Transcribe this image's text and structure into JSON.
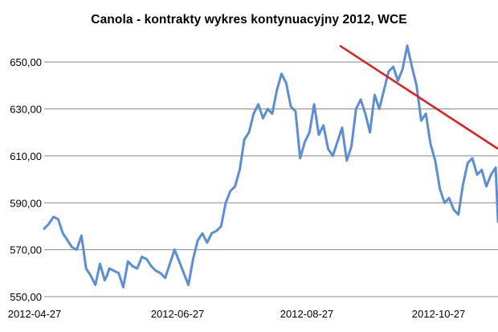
{
  "chart_data": {
    "type": "line",
    "title": "Canola - kontrakty  wykres kontynuacyjny 2012, WCE",
    "xlabel": "",
    "ylabel": "",
    "x_tick_labels": [
      "2012-04-27",
      "2012-06-27",
      "2012-08-27",
      "2012-10-27"
    ],
    "y_tick_labels": [
      "550,00",
      "570,00",
      "590,00",
      "610,00",
      "630,00",
      "650,00"
    ],
    "y_ticks": [
      550,
      570,
      590,
      610,
      630,
      650
    ],
    "ylim": [
      550,
      660
    ],
    "x_range_days": [
      0,
      195
    ],
    "grid": "horizontal",
    "series": [
      {
        "color": "#5b8ed6",
        "x": [
          0,
          2,
          4,
          6,
          8,
          10,
          12,
          14,
          16,
          18,
          20,
          22,
          24,
          26,
          27,
          28,
          30,
          32,
          34,
          36,
          38,
          40,
          42,
          44,
          46,
          48,
          50,
          52,
          54,
          56,
          58,
          60,
          62,
          64,
          66,
          68,
          70,
          72,
          74,
          76,
          78,
          80,
          82,
          84,
          86,
          88,
          90,
          92,
          94,
          96,
          98,
          100,
          102,
          104,
          106,
          108,
          110,
          112,
          114,
          116,
          118,
          120,
          122,
          124,
          126,
          128,
          130,
          132,
          134,
          136,
          138,
          140,
          142,
          144,
          146,
          148,
          150,
          152,
          154,
          156,
          158,
          160,
          162,
          164,
          166,
          168,
          170,
          172,
          174,
          176,
          178,
          180,
          182,
          184,
          186,
          188,
          190,
          192,
          194,
          195
        ],
        "y": [
          579,
          581,
          584,
          583,
          577,
          574,
          571,
          570,
          576,
          562,
          559,
          555,
          564,
          557,
          559,
          562,
          561,
          560,
          554,
          565,
          563,
          562,
          567,
          566,
          563,
          561,
          560,
          558,
          564,
          570,
          565,
          560,
          555,
          566,
          574,
          577,
          573,
          577,
          578,
          580,
          590,
          595,
          597,
          604,
          617,
          620,
          628,
          632,
          626,
          630,
          628,
          638,
          645,
          641,
          631,
          629,
          609,
          616,
          620,
          632,
          619,
          623,
          613,
          610,
          616,
          622,
          608,
          614,
          630,
          634,
          628,
          620,
          636,
          630,
          638,
          646,
          648,
          642,
          647,
          657,
          648,
          640,
          625,
          628,
          615,
          608,
          596,
          590,
          592,
          587,
          585,
          598,
          607,
          609,
          602,
          604,
          597,
          602,
          605,
          582
        ]
      }
    ],
    "annotations": [
      {
        "type": "trend-line",
        "color": "#e31b1b",
        "x": [
          127,
          195
        ],
        "y": [
          657,
          613
        ]
      }
    ]
  }
}
